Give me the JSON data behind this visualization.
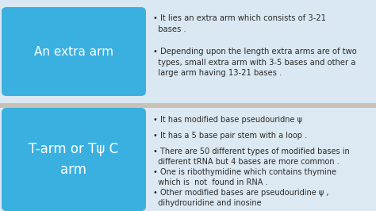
{
  "bg_color": "#c9c0b6",
  "top_panel_color": "#d9e8f2",
  "bottom_panel_color": "#dce9f3",
  "divider_color": "#c9c0b6",
  "box_color": "#3ab0e0",
  "box_text_color": "#ffffff",
  "bullet_text_color": "#2a2a2a",
  "top_label": "An extra arm",
  "bottom_label": "T-arm or Tψ C\narm",
  "top_bullets": [
    "It lies an extra arm which consists of 3-21\n  bases .",
    "Depending upon the length extra arms are of two\n  types, small extra arm with 3-5 bases and other a\n  large arm having 13-21 bases ."
  ],
  "bottom_bullets": [
    "It has modified base pseudouridne ψ",
    "It has a 5 base pair stem with a loop .",
    "There are 50 different types of modified bases in\n  different tRNA but 4 bases are more common .",
    "One is ribothymidine which contains thymine\n  which is  not  found in RNA .",
    "Other modified bases are pseudouridine ψ ,\n  dihydrouridine and inosine"
  ],
  "figsize": [
    4.74,
    2.66
  ],
  "dpi": 100
}
